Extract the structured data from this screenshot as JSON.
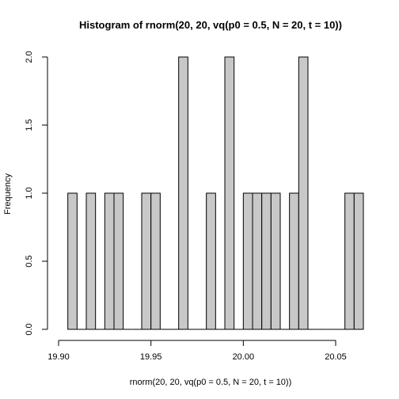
{
  "chart_data": {
    "type": "bar",
    "title": "Histogram of rnorm(20, 20, vq(p0 = 0.5, N = 20, t = 10))",
    "xlabel": "rnorm(20, 20, vq(p0 = 0.5, N = 20, t = 10))",
    "ylabel": "Frequency",
    "bin_width": 0.005,
    "x_range": [
      19.905,
      20.065
    ],
    "xlim": [
      19.9,
      20.065
    ],
    "ylim": [
      0,
      2.0
    ],
    "grid": false,
    "bins": [
      {
        "start": 19.905,
        "end": 19.91,
        "count": 1
      },
      {
        "start": 19.91,
        "end": 19.915,
        "count": 0
      },
      {
        "start": 19.915,
        "end": 19.92,
        "count": 1
      },
      {
        "start": 19.92,
        "end": 19.925,
        "count": 0
      },
      {
        "start": 19.925,
        "end": 19.93,
        "count": 1
      },
      {
        "start": 19.93,
        "end": 19.935,
        "count": 1
      },
      {
        "start": 19.935,
        "end": 19.94,
        "count": 0
      },
      {
        "start": 19.94,
        "end": 19.945,
        "count": 0
      },
      {
        "start": 19.945,
        "end": 19.95,
        "count": 1
      },
      {
        "start": 19.95,
        "end": 19.955,
        "count": 1
      },
      {
        "start": 19.955,
        "end": 19.96,
        "count": 0
      },
      {
        "start": 19.96,
        "end": 19.965,
        "count": 0
      },
      {
        "start": 19.965,
        "end": 19.97,
        "count": 2
      },
      {
        "start": 19.97,
        "end": 19.975,
        "count": 0
      },
      {
        "start": 19.975,
        "end": 19.98,
        "count": 0
      },
      {
        "start": 19.98,
        "end": 19.985,
        "count": 1
      },
      {
        "start": 19.985,
        "end": 19.99,
        "count": 0
      },
      {
        "start": 19.99,
        "end": 19.995,
        "count": 2
      },
      {
        "start": 19.995,
        "end": 20.0,
        "count": 0
      },
      {
        "start": 20.0,
        "end": 20.005,
        "count": 1
      },
      {
        "start": 20.005,
        "end": 20.01,
        "count": 1
      },
      {
        "start": 20.01,
        "end": 20.015,
        "count": 1
      },
      {
        "start": 20.015,
        "end": 20.02,
        "count": 1
      },
      {
        "start": 20.02,
        "end": 20.025,
        "count": 0
      },
      {
        "start": 20.025,
        "end": 20.03,
        "count": 1
      },
      {
        "start": 20.03,
        "end": 20.035,
        "count": 2
      },
      {
        "start": 20.035,
        "end": 20.04,
        "count": 0
      },
      {
        "start": 20.04,
        "end": 20.045,
        "count": 0
      },
      {
        "start": 20.045,
        "end": 20.05,
        "count": 0
      },
      {
        "start": 20.05,
        "end": 20.055,
        "count": 0
      },
      {
        "start": 20.055,
        "end": 20.06,
        "count": 1
      },
      {
        "start": 20.06,
        "end": 20.065,
        "count": 1
      }
    ],
    "x_ticks": [
      {
        "value": 19.9,
        "label": "19.90"
      },
      {
        "value": 19.95,
        "label": "19.95"
      },
      {
        "value": 20.0,
        "label": "20.00"
      },
      {
        "value": 20.05,
        "label": "20.05"
      }
    ],
    "y_ticks": [
      {
        "value": 0.0,
        "label": "0.0"
      },
      {
        "value": 0.5,
        "label": "0.5"
      },
      {
        "value": 1.0,
        "label": "1.0"
      },
      {
        "value": 1.5,
        "label": "1.5"
      },
      {
        "value": 2.0,
        "label": "2.0"
      }
    ],
    "colors": {
      "bar_fill": "#c8c8c8",
      "bar_stroke": "#000000",
      "background": "#ffffff"
    }
  }
}
